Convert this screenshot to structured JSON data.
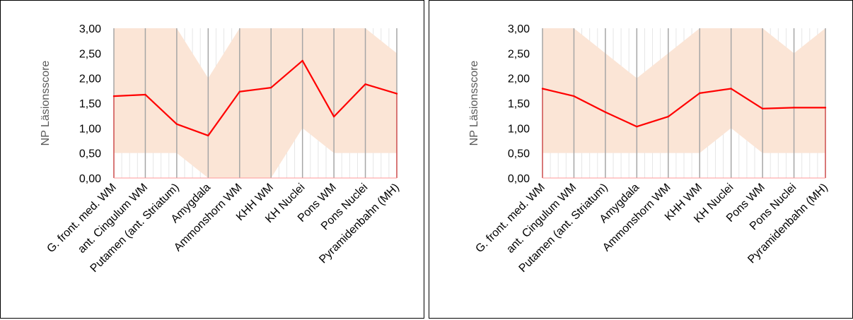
{
  "chart_data": [
    {
      "type": "line",
      "title": "",
      "ylabel": "NP Läsionsscore",
      "xlabel": "",
      "ylim": [
        0,
        3
      ],
      "yticks": [
        "0,00",
        "0,50",
        "1,00",
        "1,50",
        "2,00",
        "2,50",
        "3,00"
      ],
      "yticks_values": [
        0,
        0.5,
        1,
        1.5,
        2,
        2.5,
        3
      ],
      "categories": [
        "G. front. med. WM",
        "ant. Cingulum WM",
        "Putamen (ant. Striatum)",
        "Amygdala",
        "Ammonshorn WM",
        "KHH WM",
        "KH Nuclei",
        "Pons WM",
        "Pons Nuclei",
        "Pyramidenbahn (MH)"
      ],
      "series": [
        {
          "role": "mean",
          "values": [
            1.64,
            1.67,
            1.08,
            0.85,
            1.73,
            1.81,
            2.35,
            1.23,
            1.88,
            1.69
          ],
          "color": "#ff0000"
        }
      ],
      "range": {
        "min": [
          0.5,
          0.5,
          0.5,
          0.0,
          0.0,
          0.0,
          1.0,
          0.5,
          0.5,
          0.5
        ],
        "max": [
          3.0,
          3.0,
          3.0,
          2.0,
          3.0,
          3.0,
          3.0,
          3.0,
          3.0,
          2.5
        ],
        "color": "#fbe5d6"
      },
      "grid": true,
      "legend": "none"
    },
    {
      "type": "line",
      "title": "",
      "ylabel": "NP Läsionsscore",
      "xlabel": "",
      "ylim": [
        0,
        3
      ],
      "yticks": [
        "0,00",
        "0,50",
        "1,00",
        "1,50",
        "2,00",
        "2,50",
        "3,00"
      ],
      "yticks_values": [
        0,
        0.5,
        1,
        1.5,
        2,
        2.5,
        3
      ],
      "categories": [
        "G. front. med. WM",
        "ant. Cingulum WM",
        "Putamen (ant. Striatum)",
        "Amygdala",
        "Ammonshorn WM",
        "KHH WM",
        "KH Nuclei",
        "Pons WM",
        "Pons Nuclei",
        "Pyramidenbahn (MH)"
      ],
      "series": [
        {
          "role": "mean",
          "values": [
            1.79,
            1.64,
            1.32,
            1.03,
            1.23,
            1.7,
            1.79,
            1.39,
            1.41,
            1.41
          ],
          "color": "#ff0000"
        }
      ],
      "range": {
        "min": [
          0.5,
          0.5,
          0.5,
          0.5,
          0.5,
          0.5,
          1.0,
          0.5,
          0.5,
          0.5
        ],
        "max": [
          3.0,
          3.0,
          2.5,
          2.0,
          2.5,
          3.0,
          3.0,
          3.0,
          2.5,
          3.0
        ],
        "color": "#fbe5d6"
      },
      "grid": true,
      "legend": "none"
    }
  ]
}
